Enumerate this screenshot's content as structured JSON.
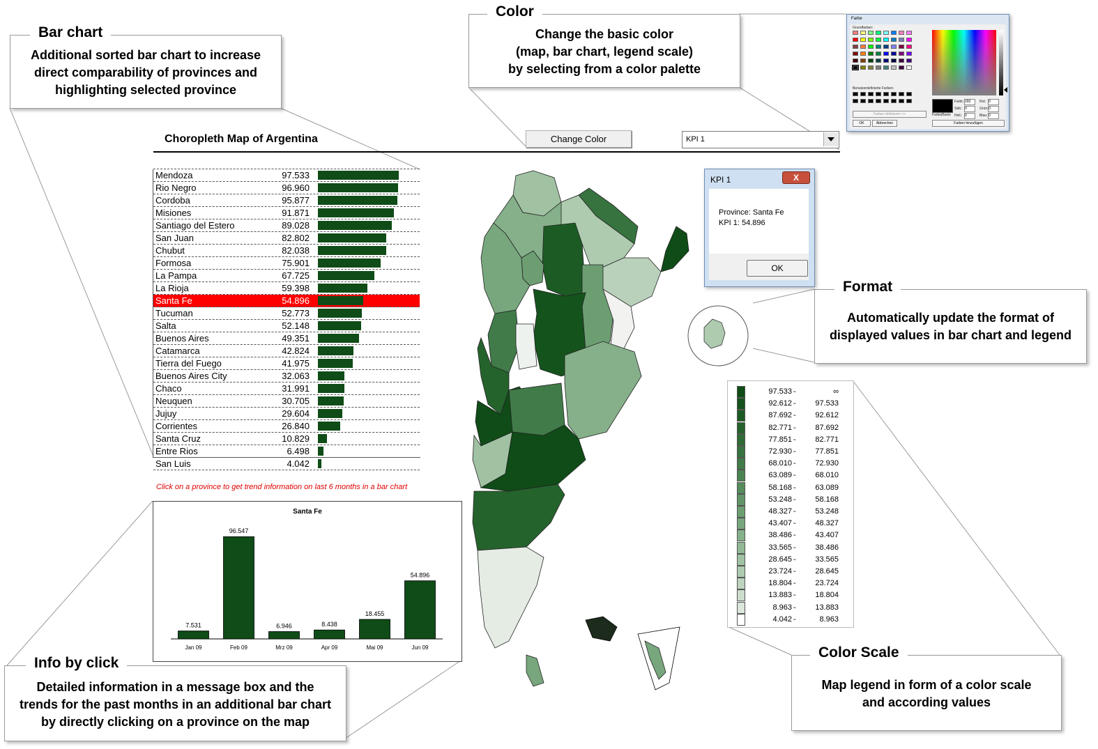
{
  "callouts": {
    "bar_chart": {
      "title": "Bar chart",
      "lines": [
        "Additional sorted bar chart to increase",
        "direct comparability of provinces and",
        "highlighting selected province"
      ]
    },
    "color": {
      "title": "Color",
      "lines": [
        "Change the basic color",
        "(map, bar chart, legend scale)",
        "by selecting from a color palette"
      ]
    },
    "format": {
      "title": "Format",
      "lines": [
        "Automatically update the format of",
        "displayed values in bar chart and legend"
      ]
    },
    "color_scale": {
      "title": "Color Scale",
      "lines": [
        "Map legend in form of a color scale",
        "and according values"
      ]
    },
    "info_by_click": {
      "title": "Info by click",
      "lines": [
        "Detailed information in a message box and the",
        "trends for the past months in an additional bar chart",
        "by directly clicking on a province on the map"
      ]
    }
  },
  "sheet": {
    "title": "Choropleth Map of Argentina",
    "change_color_button": "Change Color",
    "kpi_selected": "KPI 1",
    "hint": "Click on a province to get trend information on last 6 months in a bar chart",
    "bar_color": "#0f4c17",
    "highlight_color": "#ff0000"
  },
  "provinces": [
    {
      "name": "Mendoza",
      "value": "97.533",
      "v": 97.533
    },
    {
      "name": "Rio Negro",
      "value": "96.960",
      "v": 96.96
    },
    {
      "name": "Cordoba",
      "value": "95.877",
      "v": 95.877
    },
    {
      "name": "Misiones",
      "value": "91.871",
      "v": 91.871
    },
    {
      "name": "Santiago del Estero",
      "value": "89.028",
      "v": 89.028
    },
    {
      "name": "San Juan",
      "value": "82.802",
      "v": 82.802
    },
    {
      "name": "Chubut",
      "value": "82.038",
      "v": 82.038
    },
    {
      "name": "Formosa",
      "value": "75.901",
      "v": 75.901
    },
    {
      "name": "La Pampa",
      "value": "67.725",
      "v": 67.725
    },
    {
      "name": "La Rioja",
      "value": "59.398",
      "v": 59.398
    },
    {
      "name": "Santa Fe",
      "value": "54.896",
      "v": 54.896,
      "selected": true
    },
    {
      "name": "Tucuman",
      "value": "52.773",
      "v": 52.773
    },
    {
      "name": "Salta",
      "value": "52.148",
      "v": 52.148
    },
    {
      "name": "Buenos Aires",
      "value": "49.351",
      "v": 49.351
    },
    {
      "name": "Catamarca",
      "value": "42.824",
      "v": 42.824
    },
    {
      "name": "Tierra del Fuego",
      "value": "41.975",
      "v": 41.975
    },
    {
      "name": "Buenos Aires City",
      "value": "32.063",
      "v": 32.063
    },
    {
      "name": "Chaco",
      "value": "31.991",
      "v": 31.991
    },
    {
      "name": "Neuquen",
      "value": "30.705",
      "v": 30.705
    },
    {
      "name": "Jujuy",
      "value": "29.604",
      "v": 29.604
    },
    {
      "name": "Corrientes",
      "value": "26.840",
      "v": 26.84
    },
    {
      "name": "Santa Cruz",
      "value": "10.829",
      "v": 10.829
    },
    {
      "name": "Entre Rios",
      "value": "6.498",
      "v": 6.498
    },
    {
      "name": "San Luis",
      "value": "4.042",
      "v": 4.042
    }
  ],
  "message_box": {
    "title": "KPI 1",
    "close_label": "X",
    "line1": "Province: Santa Fe",
    "line2": "KPI 1: 54.896",
    "ok_label": "OK"
  },
  "legend": [
    {
      "lo": "97.533",
      "hi": "∞",
      "color": "#0f4c17"
    },
    {
      "lo": "92.612",
      "hi": "97.533",
      "color": "#15531d"
    },
    {
      "lo": "87.692",
      "hi": "92.612",
      "color": "#1d5b25"
    },
    {
      "lo": "82.771",
      "hi": "87.692",
      "color": "#25632d"
    },
    {
      "lo": "77.851",
      "hi": "82.771",
      "color": "#2e6b36"
    },
    {
      "lo": "72.930",
      "hi": "77.851",
      "color": "#37733f"
    },
    {
      "lo": "68.010",
      "hi": "72.930",
      "color": "#417b49"
    },
    {
      "lo": "63.089",
      "hi": "68.010",
      "color": "#4b8453"
    },
    {
      "lo": "58.168",
      "hi": "63.089",
      "color": "#568c5d"
    },
    {
      "lo": "53.248",
      "hi": "58.168",
      "color": "#619568"
    },
    {
      "lo": "48.327",
      "hi": "53.248",
      "color": "#6c9e72"
    },
    {
      "lo": "43.407",
      "hi": "48.327",
      "color": "#78a77d"
    },
    {
      "lo": "38.486",
      "hi": "43.407",
      "color": "#85b08a"
    },
    {
      "lo": "33.565",
      "hi": "38.486",
      "color": "#92b996"
    },
    {
      "lo": "28.645",
      "hi": "33.565",
      "color": "#a0c2a3"
    },
    {
      "lo": "23.724",
      "hi": "28.645",
      "color": "#aecbb0"
    },
    {
      "lo": "18.804",
      "hi": "23.724",
      "color": "#bdd4be"
    },
    {
      "lo": "13.883",
      "hi": "18.804",
      "color": "#ccddcd"
    },
    {
      "lo": "8.963",
      "hi": "13.883",
      "color": "#dbe7dc"
    },
    {
      "lo": "4.042",
      "hi": "8.963",
      "color": "#ffffff"
    }
  ],
  "palette_dialog": {
    "title": "Farbe",
    "basic_colors_label": "Grundfarben:",
    "custom_colors_label": "Benutzerdefinierte Farben:",
    "define_button": "Farben definieren >>",
    "ok_button": "OK",
    "cancel_button": "Abbrechen",
    "add_button": "Farben hinzufügen",
    "preview_label": "Farbe|Basis",
    "fields": [
      {
        "label": "Farbt.:",
        "value": "160"
      },
      {
        "label": "Sätt.:",
        "value": "0"
      },
      {
        "label": "Hell.:",
        "value": "0"
      },
      {
        "label": "Rot:",
        "value": "0"
      },
      {
        "label": "Grün:",
        "value": "0"
      },
      {
        "label": "Blau:",
        "value": "0"
      }
    ],
    "basic_colors": [
      "#ff8080",
      "#ffff80",
      "#80ff80",
      "#00ff80",
      "#80ffff",
      "#0080ff",
      "#ff80c0",
      "#ff80ff",
      "#ff0000",
      "#ffff00",
      "#80ff00",
      "#00ff40",
      "#00ffff",
      "#0080c0",
      "#8080c0",
      "#ff00ff",
      "#804040",
      "#ff8040",
      "#00ff00",
      "#008080",
      "#004080",
      "#8080ff",
      "#800040",
      "#ff0080",
      "#800000",
      "#ff8000",
      "#008000",
      "#008040",
      "#0000ff",
      "#0000a0",
      "#800080",
      "#8000ff",
      "#400000",
      "#804000",
      "#004000",
      "#004040",
      "#000080",
      "#000040",
      "#400040",
      "#400080",
      "#000000",
      "#808000",
      "#808040",
      "#808080",
      "#408080",
      "#c0c0c0",
      "#400040",
      "#ffffff"
    ]
  },
  "chart_data": {
    "type": "bar",
    "title": "Santa Fe",
    "categories": [
      "Jan 09",
      "Feb 09",
      "Mrz 09",
      "Apr 09",
      "Mai 09",
      "Jun 09"
    ],
    "values": [
      7.531,
      96.547,
      6.946,
      8.438,
      18.455,
      54.896
    ],
    "labels": [
      "7.531",
      "96.547",
      "6.946",
      "8.438",
      "18.455",
      "54.896"
    ],
    "xlabel": "",
    "ylabel": "",
    "ylim": [
      0,
      100
    ],
    "color": "#0f4c17",
    "grid": false
  }
}
